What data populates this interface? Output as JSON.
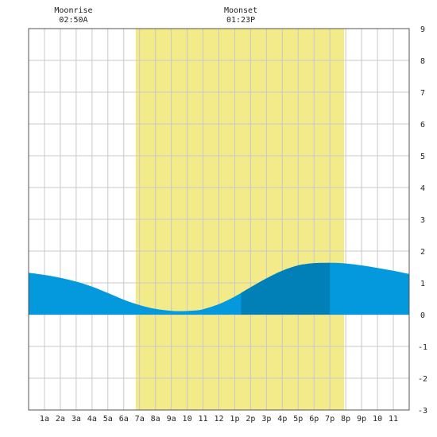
{
  "chart_data": {
    "type": "area",
    "title": "",
    "xlabel": "",
    "ylabel": "",
    "xlim": [
      0,
      24
    ],
    "ylim": [
      -3,
      9
    ],
    "yticks": [
      -3,
      -2,
      -1,
      0,
      1,
      2,
      3,
      4,
      5,
      6,
      7,
      8,
      9
    ],
    "xtick_labels": [
      "1a",
      "2a",
      "3a",
      "4a",
      "5a",
      "6a",
      "7a",
      "8a",
      "9a",
      "10",
      "11",
      "12",
      "1p",
      "2p",
      "3p",
      "4p",
      "5p",
      "6p",
      "7p",
      "8p",
      "9p",
      "10",
      "11"
    ],
    "grid": true,
    "daylight": {
      "start_hour": 6.75,
      "end_hour": 19.9,
      "color": "#f3eb8a"
    },
    "highlight": {
      "start_hour": 13.4,
      "end_hour": 19.0,
      "color": "#0180b8"
    },
    "annotations": [
      {
        "label": "Moonrise",
        "time": "02:50A",
        "hour": 2.83
      },
      {
        "label": "Moonset",
        "time": "01:23P",
        "hour": 13.38
      }
    ],
    "series": [
      {
        "color": "#0399dc",
        "x": [
          0,
          1,
          2,
          3,
          4,
          5,
          6,
          7,
          8,
          9,
          9.75,
          10.5,
          11,
          12,
          13,
          14,
          15,
          16,
          17,
          18,
          19,
          19.25,
          20,
          21,
          22,
          23,
          24
        ],
        "y": [
          1.32,
          1.25,
          1.16,
          1.04,
          0.88,
          0.68,
          0.47,
          0.3,
          0.18,
          0.12,
          0.11,
          0.13,
          0.17,
          0.33,
          0.57,
          0.86,
          1.14,
          1.38,
          1.55,
          1.62,
          1.63,
          1.63,
          1.61,
          1.55,
          1.47,
          1.38,
          1.28
        ]
      }
    ]
  }
}
